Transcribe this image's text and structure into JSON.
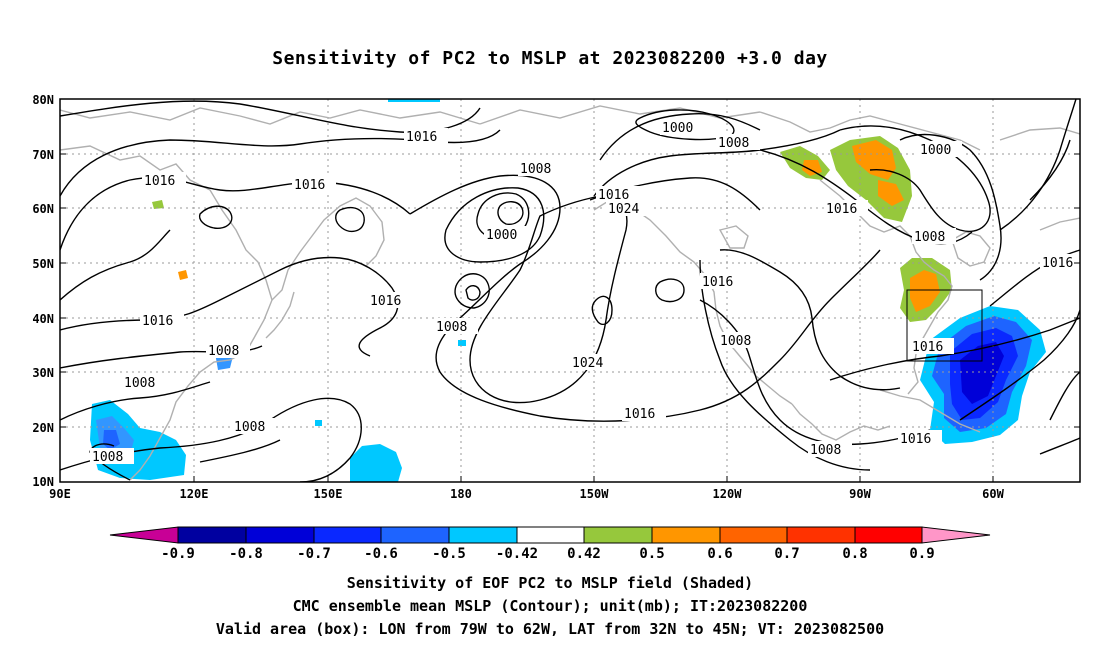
{
  "title": "Sensitivity of PC2 to MSLP at 2023082200 +3.0 day",
  "map": {
    "lon_labels": [
      "90E",
      "120E",
      "150E",
      "180",
      "150W",
      "120W",
      "90W",
      "60W"
    ],
    "lat_labels": [
      "80N",
      "70N",
      "60N",
      "50N",
      "40N",
      "30N",
      "20N",
      "10N"
    ],
    "contour_labels": [
      "1016",
      "1016",
      "1016",
      "1016",
      "1016",
      "1016",
      "1016",
      "1016",
      "1016",
      "1016",
      "1016",
      "1016",
      "1008",
      "1008",
      "1008",
      "1008",
      "1008",
      "1008",
      "1008",
      "1008",
      "1008",
      "1008",
      "1000",
      "1000",
      "1000",
      "1024",
      "1024"
    ],
    "box": "LON 79W-62W, LAT 32N-45N",
    "colors": {
      "-0.9": "#0000a0",
      "-0.8": "#0000d8",
      "-0.7": "#0a28ff",
      "-0.6": "#1e64ff",
      "-0.5": "#3296ff",
      "-0.42": "#00c8ff",
      "0.42": "#ffffff",
      "0.5": "#96c83c",
      "0.6": "#ff9600",
      "0.7": "#ff6400",
      "0.8": "#ff3200",
      "0.9": "#ff0000",
      "low_tri": "#c80096",
      "high_tri": "#ff96c8"
    }
  },
  "colorbar": {
    "labels": [
      "-0.9",
      "-0.8",
      "-0.7",
      "-0.6",
      "-0.5",
      "-0.42",
      "0.42",
      "0.5",
      "0.6",
      "0.7",
      "0.8",
      "0.9"
    ]
  },
  "footer": {
    "line1": "Sensitivity of EOF PC2 to MSLP field (Shaded)",
    "line2": "CMC ensemble mean MSLP (Contour); unit(mb); IT:2023082200",
    "line3": "Valid area (box): LON from 79W to 62W, LAT from 32N to 45N; VT: 2023082500"
  }
}
